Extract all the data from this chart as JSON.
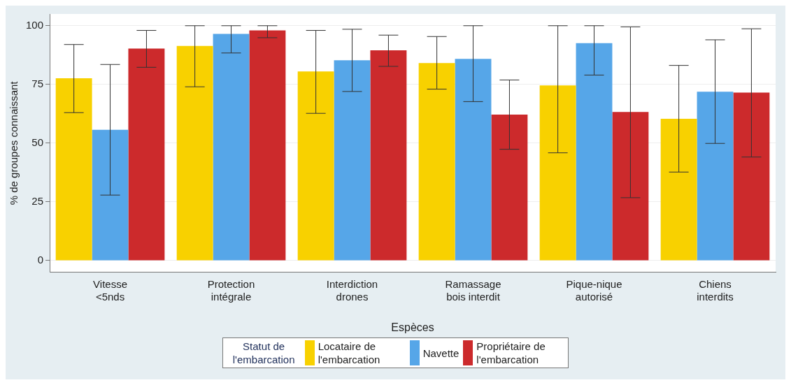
{
  "chart_data": {
    "type": "bar",
    "xlabel": "Espèces",
    "ylabel": "% de groupes connaissant",
    "legend_title": "Statut de l'embarcation",
    "categories": [
      "Vitesse <5nds",
      "Protection intégrale",
      "Interdiction drones",
      "Ramassage bois interdit",
      "Pique-nique autorisé",
      "Chiens interdits"
    ],
    "series": [
      {
        "name": "Locataire de l'embarcation",
        "color": "#f8d100",
        "values": [
          77.6,
          91.4,
          80.5,
          84.1,
          74.6,
          60.4
        ],
        "errors": [
          [
            63,
            92
          ],
          [
            74,
            100
          ],
          [
            62.7,
            98
          ],
          [
            73,
            95.4
          ],
          [
            45.9,
            100
          ],
          [
            37.7,
            83.1
          ]
        ]
      },
      {
        "name": "Navette",
        "color": "#56a6e8",
        "values": [
          55.7,
          96.5,
          85.3,
          85.9,
          92.6,
          71.9
        ],
        "errors": [
          [
            27.9,
            83.5
          ],
          [
            88.4,
            100
          ],
          [
            72,
            98.5
          ],
          [
            67.7,
            100
          ],
          [
            79,
            100
          ],
          [
            49.9,
            94
          ]
        ]
      },
      {
        "name": "Propriétaire de l'embarcation",
        "color": "#cc2a2c",
        "values": [
          90.3,
          98,
          89.5,
          62.2,
          63.3,
          71.5
        ],
        "errors": [
          [
            82.3,
            98
          ],
          [
            94.9,
            100
          ],
          [
            82.7,
            96
          ],
          [
            47.4,
            76.9
          ],
          [
            26.8,
            99.5
          ],
          [
            44.1,
            98.7
          ]
        ]
      }
    ],
    "ylim": [
      -5,
      105
    ],
    "yticks": [
      0,
      25,
      50,
      75,
      100
    ],
    "grid": "y",
    "legend": "bottom"
  }
}
